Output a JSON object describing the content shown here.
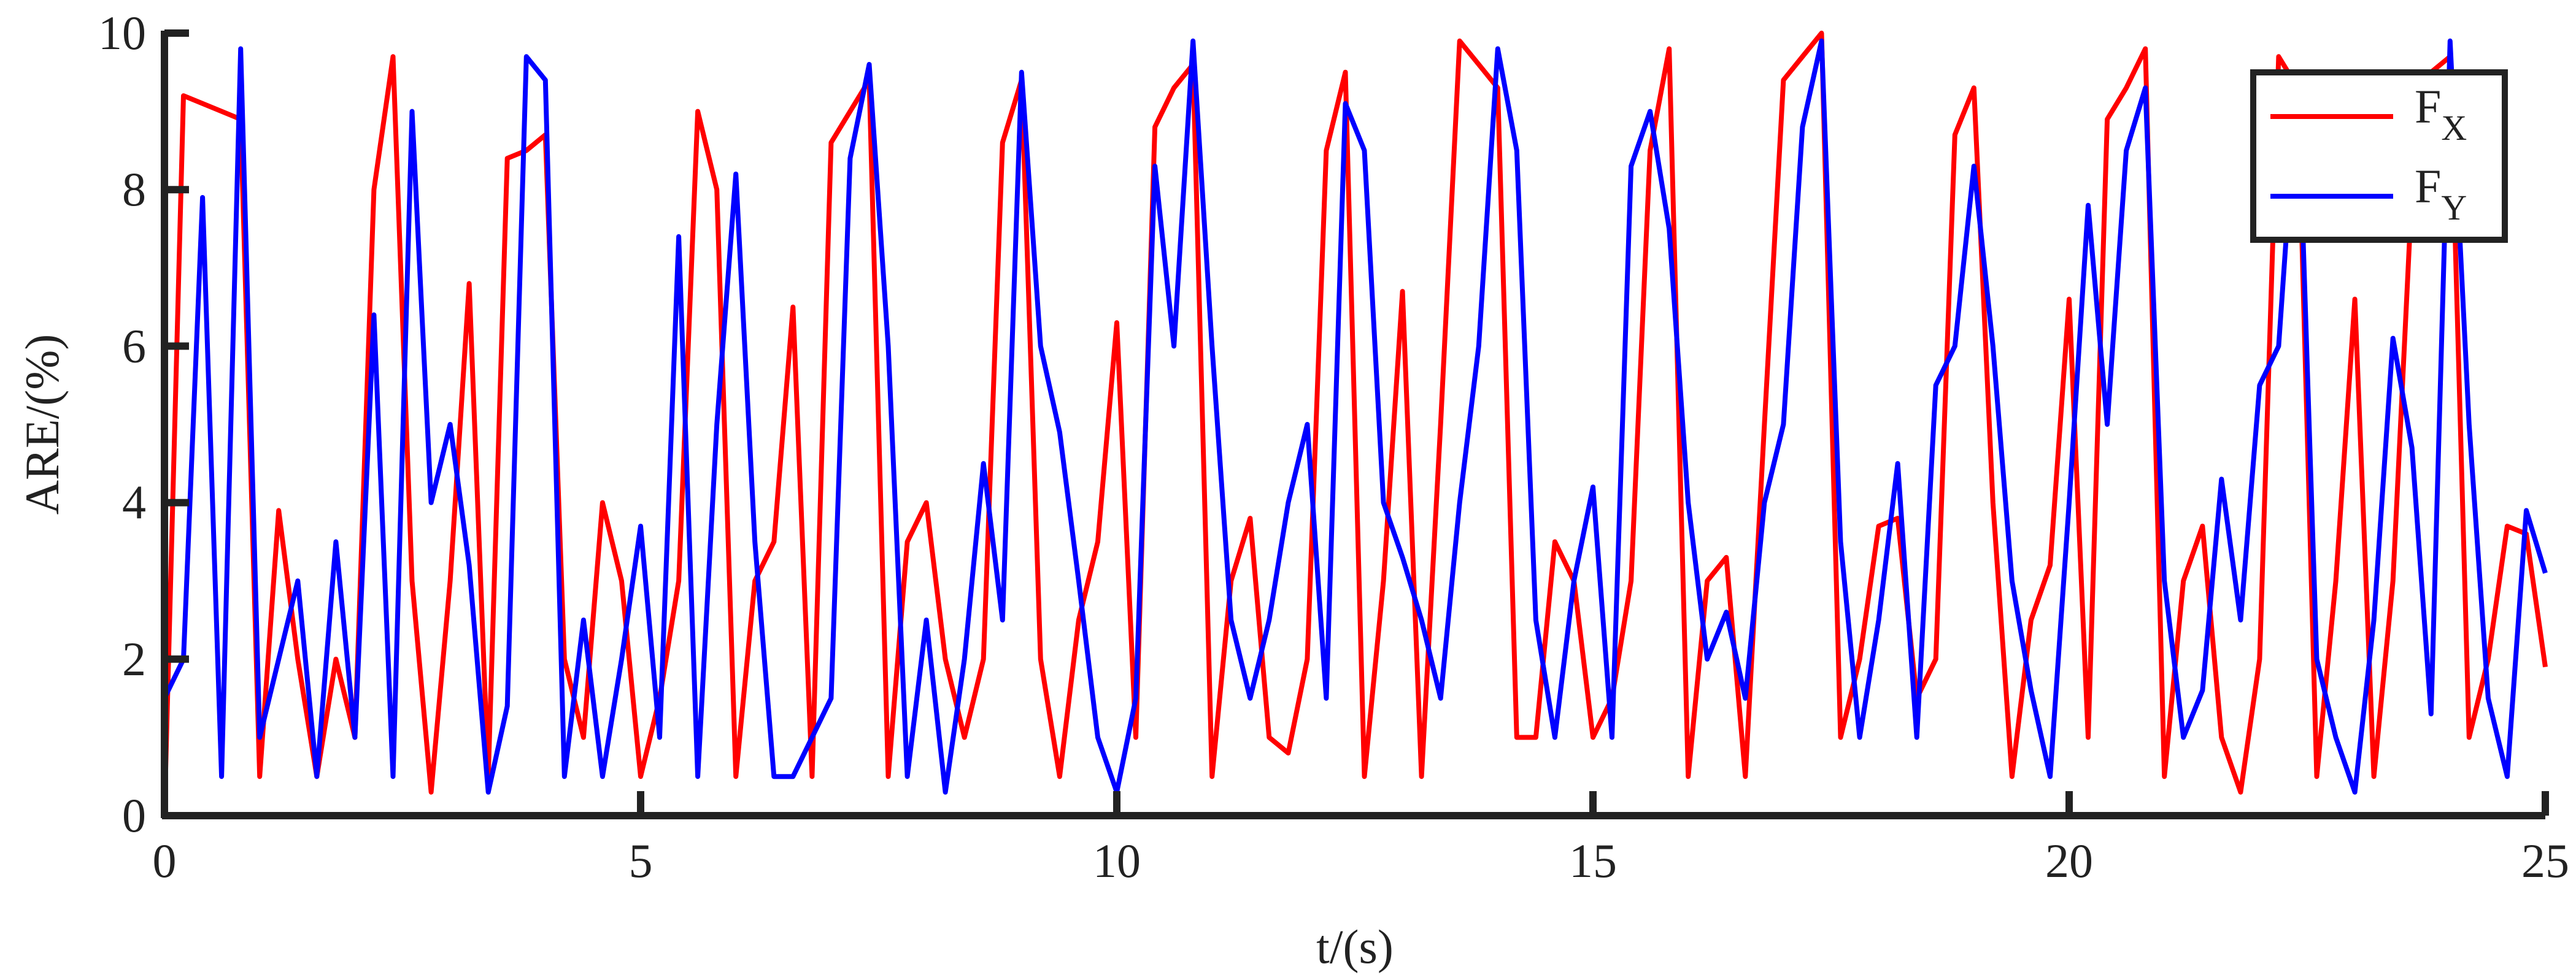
{
  "chart_data": {
    "type": "line",
    "x_label": "t/(s)",
    "y_label": "ARE/(%)",
    "xlim": [
      0,
      25
    ],
    "ylim": [
      0,
      10
    ],
    "xticks": [
      0,
      5,
      10,
      15,
      20,
      25
    ],
    "yticks": [
      0,
      2,
      4,
      6,
      8,
      10
    ],
    "legend": "upper right",
    "x": [
      0,
      0.2,
      0.4,
      0.6,
      0.8,
      1.0,
      1.2,
      1.4,
      1.6,
      1.8,
      2.0,
      2.2,
      2.4,
      2.6,
      2.8,
      3.0,
      3.2,
      3.4,
      3.6,
      3.8,
      4.0,
      4.2,
      4.4,
      4.6,
      4.8,
      5.0,
      5.2,
      5.4,
      5.6,
      5.8,
      6.0,
      6.2,
      6.4,
      6.6,
      6.8,
      7.0,
      7.2,
      7.4,
      7.6,
      7.8,
      8.0,
      8.2,
      8.4,
      8.6,
      8.8,
      9.0,
      9.2,
      9.4,
      9.6,
      9.8,
      10.0,
      10.2,
      10.4,
      10.6,
      10.8,
      11.0,
      11.2,
      11.4,
      11.6,
      11.8,
      12.0,
      12.2,
      12.4,
      12.6,
      12.8,
      13.0,
      13.2,
      13.4,
      13.6,
      13.8,
      14.0,
      14.2,
      14.4,
      14.6,
      14.8,
      15.0,
      15.2,
      15.4,
      15.6,
      15.8,
      16.0,
      16.2,
      16.4,
      16.6,
      16.8,
      17.0,
      17.2,
      17.4,
      17.6,
      17.8,
      18.0,
      18.2,
      18.4,
      18.6,
      18.8,
      19.0,
      19.2,
      19.4,
      19.6,
      19.8,
      20.0,
      20.2,
      20.4,
      20.6,
      20.8,
      21.0,
      21.2,
      21.4,
      21.6,
      21.8,
      22.0,
      22.2,
      22.4,
      22.6,
      22.8,
      23.0,
      23.2,
      23.4,
      23.6,
      23.8,
      24.0,
      24.2,
      24.4,
      24.6,
      24.8,
      25.0
    ],
    "series": [
      {
        "name": "FX",
        "color": "#ff0000",
        "values": [
          0,
          9.2,
          9.1,
          9.0,
          8.9,
          0.5,
          3.9,
          2,
          0.5,
          2,
          1,
          8,
          9.7,
          3,
          0.3,
          3,
          6.8,
          0.5,
          8.4,
          8.5,
          8.7,
          2,
          1,
          4,
          3,
          0.5,
          1.5,
          3,
          9,
          8,
          0.5,
          3,
          3.5,
          6.5,
          0.5,
          8.6,
          9,
          9.4,
          0.5,
          3.5,
          4,
          2,
          1,
          2,
          8.6,
          9.4,
          2,
          0.5,
          2.5,
          3.5,
          6.3,
          1,
          8.8,
          9.3,
          9.6,
          0.5,
          3,
          3.8,
          1,
          0.8,
          2,
          8.5,
          9.5,
          0.5,
          3,
          6.7,
          0.5,
          5,
          9.9,
          9.6,
          9.3,
          1,
          1,
          3.5,
          3,
          1,
          1.5,
          3,
          8.5,
          9.8,
          0.5,
          3,
          3.3,
          0.5,
          5,
          9.4,
          9.7,
          10,
          1,
          2,
          3.7,
          3.8,
          1.5,
          2,
          8.7,
          9.3,
          4,
          0.5,
          2.5,
          3.2,
          6.6,
          1,
          8.9,
          9.3,
          9.8,
          0.5,
          3,
          3.7,
          1,
          0.3,
          2,
          9.7,
          9.3,
          0.5,
          3,
          6.6,
          0.5,
          3,
          8,
          9.5,
          9.7,
          1,
          2,
          3.7,
          3.6,
          1.9
        ]
      },
      {
        "name": "FY",
        "color": "#0000ff",
        "values": [
          1.5,
          2,
          7.9,
          0.5,
          9.8,
          1,
          2,
          3,
          0.5,
          3.5,
          1,
          6.4,
          0.5,
          9,
          4,
          5,
          3.2,
          0.3,
          1.4,
          9.7,
          9.4,
          0.5,
          2.5,
          0.5,
          2,
          3.7,
          1,
          7.4,
          0.5,
          5,
          8.2,
          3.5,
          0.5,
          0.5,
          1,
          1.5,
          8.4,
          9.6,
          6,
          0.5,
          2.5,
          0.3,
          2,
          4.5,
          2.5,
          9.5,
          6,
          4.9,
          3,
          1,
          0.3,
          1.5,
          8.3,
          6,
          9.9,
          6,
          2.5,
          1.5,
          2.5,
          4,
          5,
          1.5,
          9.1,
          8.5,
          4,
          3.3,
          2.5,
          1.5,
          4,
          6,
          9.8,
          8.5,
          2.5,
          1,
          3,
          4.2,
          1,
          8.3,
          9,
          7.5,
          4,
          2,
          2.6,
          1.5,
          4,
          5,
          8.8,
          9.9,
          3.5,
          1,
          2.5,
          4.5,
          1,
          5.5,
          6,
          8.3,
          6,
          3,
          1.6,
          0.5,
          4,
          7.8,
          5,
          8.5,
          9.3,
          3,
          1,
          1.6,
          4.3,
          2.5,
          5.5,
          6,
          9.5,
          2,
          1,
          0.3,
          2.5,
          6.1,
          4.7,
          1.3,
          9.9,
          5,
          1.5,
          0.5,
          3.9,
          3.1
        ]
      }
    ]
  }
}
